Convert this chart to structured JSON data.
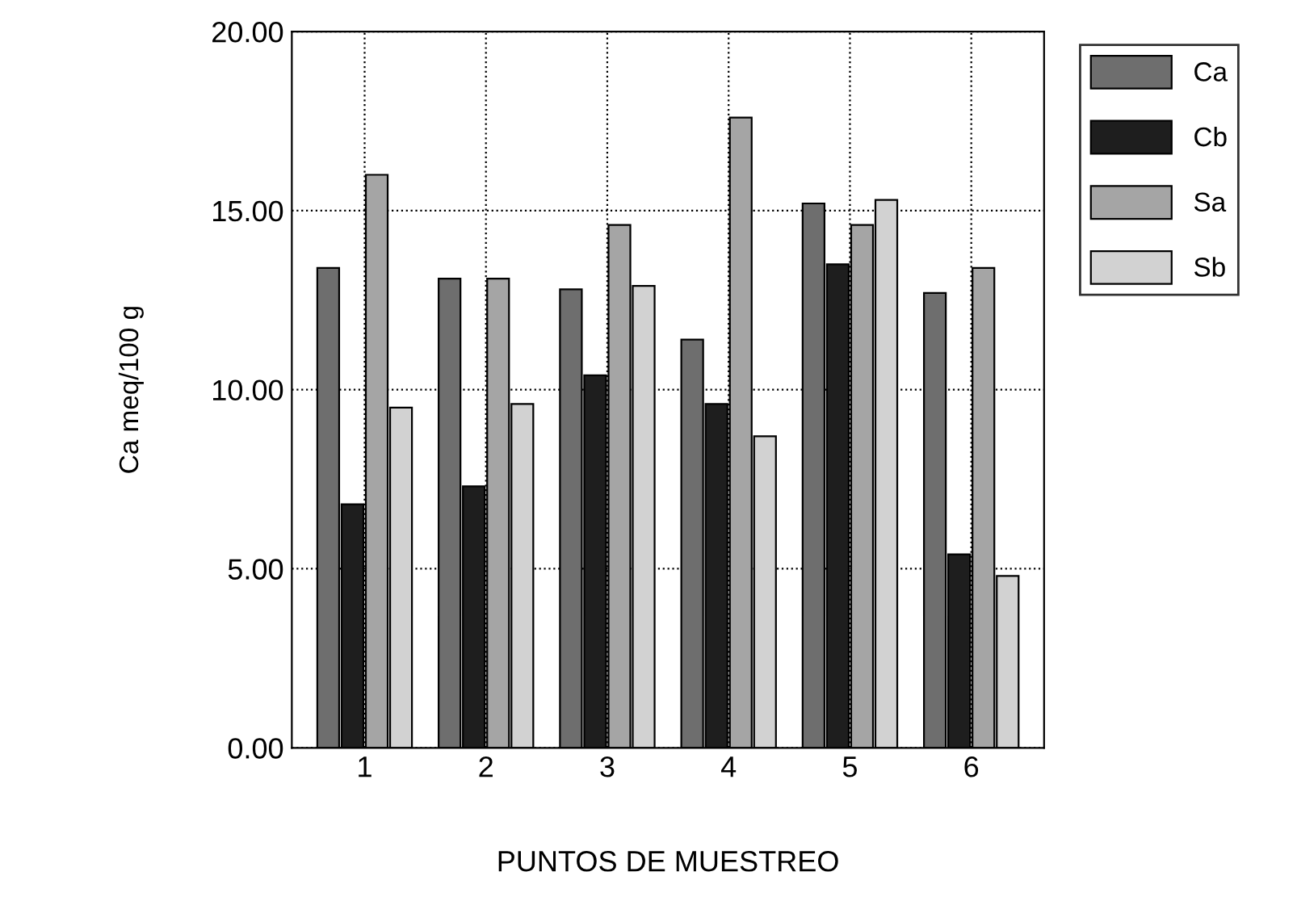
{
  "chart_data": {
    "type": "bar",
    "xlabel": "PUNTOS DE MUESTREO",
    "ylabel": "Ca meq/100 g",
    "categories": [
      "1",
      "2",
      "3",
      "4",
      "5",
      "6"
    ],
    "series": [
      {
        "name": "Ca",
        "color": "#6e6e6e",
        "values": [
          13.4,
          13.1,
          12.8,
          11.4,
          15.2,
          12.7
        ]
      },
      {
        "name": "Cb",
        "color": "#1e1e1e",
        "values": [
          6.8,
          7.3,
          10.4,
          9.6,
          13.5,
          5.4
        ]
      },
      {
        "name": "Sa",
        "color": "#a5a5a5",
        "values": [
          16.0,
          13.1,
          14.6,
          17.6,
          14.6,
          13.4
        ]
      },
      {
        "name": "Sb",
        "color": "#d2d2d2",
        "values": [
          9.5,
          9.6,
          12.9,
          8.7,
          15.3,
          4.8
        ]
      }
    ],
    "ylim": [
      0,
      20
    ],
    "yticks": [
      {
        "value": 0,
        "label": "0.00"
      },
      {
        "value": 5,
        "label": "5.00"
      },
      {
        "value": 10,
        "label": "10.00"
      },
      {
        "value": 15,
        "label": "15.00"
      },
      {
        "value": 20,
        "label": "20.00"
      }
    ],
    "grid": true,
    "legend": "right",
    "line_style": "dotted"
  }
}
